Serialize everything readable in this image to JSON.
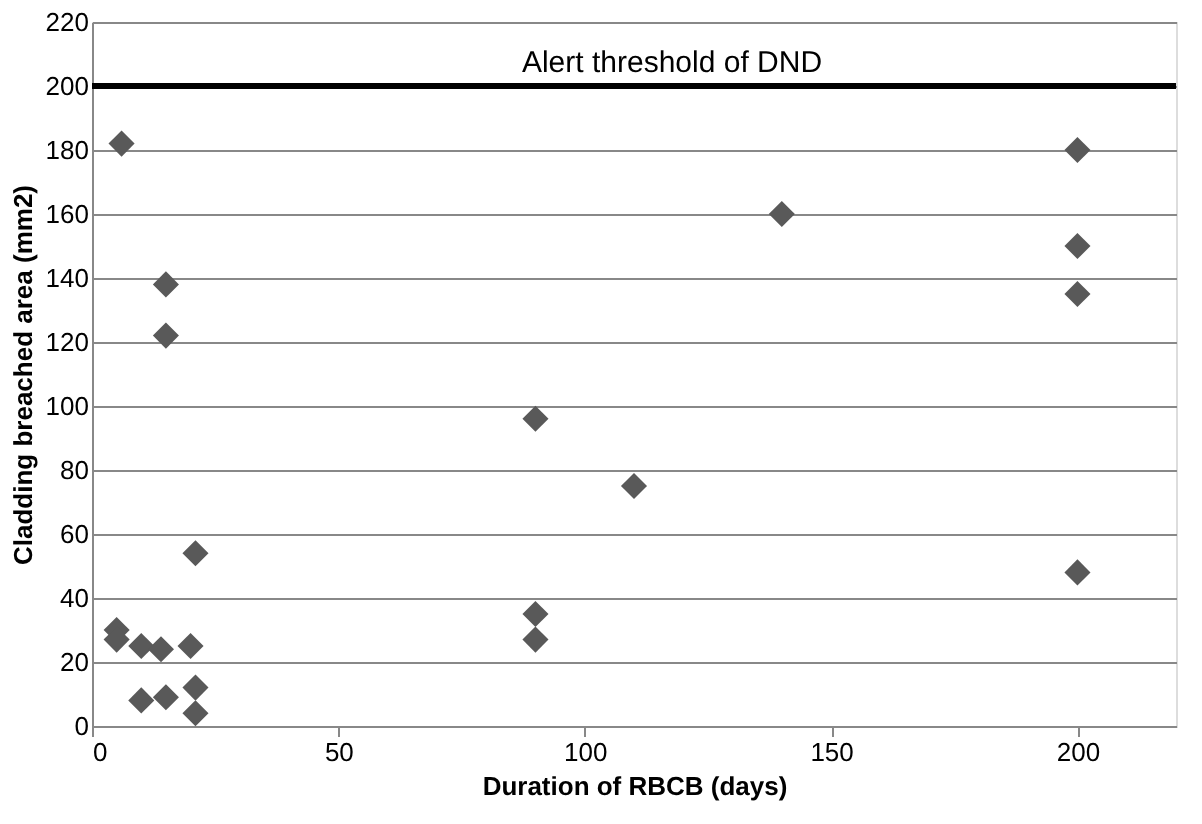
{
  "chart_data": {
    "type": "scatter",
    "xlabel": "Duration of RBCB (days)",
    "ylabel": "Cladding breached area (mm2)",
    "x": [
      6,
      5,
      5,
      10,
      10,
      15,
      15,
      14,
      15,
      20,
      21,
      21,
      21,
      90,
      90,
      90,
      110,
      140,
      200,
      200,
      200,
      200
    ],
    "values": [
      182,
      30,
      27,
      25,
      8,
      138,
      122,
      24,
      9,
      25,
      54,
      12,
      4,
      96,
      35,
      27,
      75,
      160,
      180,
      150,
      135,
      48
    ],
    "color": "#595959",
    "marker": "diamond",
    "xlim": [
      0,
      220
    ],
    "xticks": [
      0,
      50,
      100,
      150,
      200
    ],
    "ylim": [
      0,
      220
    ],
    "yticks": [
      0,
      20,
      40,
      60,
      80,
      100,
      120,
      140,
      160,
      180,
      200,
      220
    ],
    "grid": "y",
    "ref_lines": [
      {
        "axis": "y",
        "value": 200,
        "label": "Alert threshold of DND",
        "color": "#000000"
      }
    ]
  }
}
